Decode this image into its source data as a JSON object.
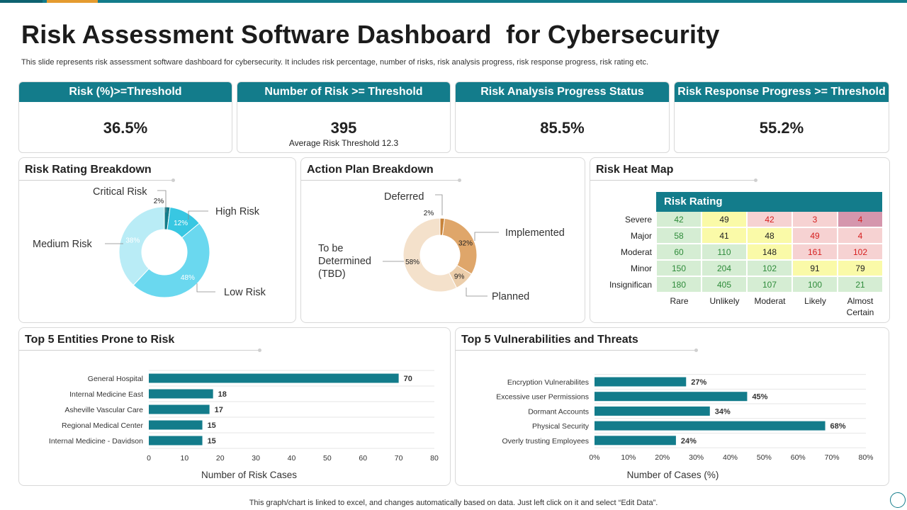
{
  "title": "Risk Assessment Software Dashboard  for Cybersecurity",
  "subtitle": "This slide represents risk assessment software dashboard for cybersecurity. It includes risk percentage, number of risks, risk analysis progress, risk response progress, risk rating etc.",
  "kpis": [
    {
      "label": "Risk (%)>=Threshold",
      "value": "36.5%"
    },
    {
      "label": "Number of Risk >= Threshold",
      "value": "395",
      "note": "Average  Risk Threshold  12.3"
    },
    {
      "label": "Risk  Analysis Progress Status",
      "value": "85.5%"
    },
    {
      "label": "Risk  Response Progress >= Threshold",
      "value": "55.2%"
    }
  ],
  "panels": {
    "rating": "Risk  Rating Breakdown",
    "action": "Action Plan Breakdown",
    "heatmap": "Risk Heat Map",
    "entities": "Top 5 Entities  Prone to Risk",
    "vulns": "Top 5 Vulnerabilities  and Threats"
  },
  "heatmap": {
    "header": "Risk Rating",
    "rows": [
      "Severe",
      "Major",
      "Moderat",
      "Minor",
      "Insignifican"
    ],
    "cols": [
      "Rare",
      "Unlikely",
      "Moderat",
      "Likely",
      "Almost Certain"
    ],
    "values": [
      [
        "42",
        "49",
        "42",
        "3",
        "4"
      ],
      [
        "58",
        "41",
        "48",
        "49",
        "4"
      ],
      [
        "60",
        "110",
        "148",
        "161",
        "102"
      ],
      [
        "150",
        "204",
        "102",
        "91",
        "79"
      ],
      [
        "180",
        "405",
        "107",
        "100",
        "21"
      ]
    ],
    "cell_colors": [
      [
        "#d5edd3",
        "#fafaa8",
        "#f6d2d2",
        "#f6d2d2",
        "#d596ad"
      ],
      [
        "#d5edd3",
        "#fafaa8",
        "#fafaa8",
        "#f6d2d2",
        "#f6d2d2"
      ],
      [
        "#d5edd3",
        "#d5edd3",
        "#fafaa8",
        "#f6d2d2",
        "#f6d2d2"
      ],
      [
        "#d5edd3",
        "#d5edd3",
        "#d5edd3",
        "#fafaa8",
        "#fafaa8"
      ],
      [
        "#d5edd3",
        "#d5edd3",
        "#d5edd3",
        "#d5edd3",
        "#d5edd3"
      ]
    ],
    "text_colors": [
      [
        "#2e8b3a",
        "#222222",
        "#d62020",
        "#d62020",
        "#d62020"
      ],
      [
        "#2e8b3a",
        "#222222",
        "#222222",
        "#d62020",
        "#d62020"
      ],
      [
        "#2e8b3a",
        "#2e8b3a",
        "#222222",
        "#d62020",
        "#d62020"
      ],
      [
        "#2e8b3a",
        "#2e8b3a",
        "#2e8b3a",
        "#222222",
        "#222222"
      ],
      [
        "#2e8b3a",
        "#2e8b3a",
        "#2e8b3a",
        "#2e8b3a",
        "#2e8b3a"
      ]
    ]
  },
  "chart_data": [
    {
      "type": "pie",
      "title": "Risk  Rating Breakdown",
      "categories": [
        "Critical Risk",
        "High Risk",
        "Low Risk",
        "Medium Risk"
      ],
      "values": [
        2,
        12,
        48,
        38
      ],
      "labels": [
        "2%",
        "12%",
        "48%",
        "38%"
      ],
      "colors": [
        "#137c8b",
        "#38c7e2",
        "#6ad8ef",
        "#b9ecf6"
      ]
    },
    {
      "type": "pie",
      "title": "Action Plan Breakdown",
      "categories": [
        "Deferred",
        "Implemented",
        "Planned",
        "To be Determined (TBD)"
      ],
      "values": [
        2,
        32,
        9,
        58
      ],
      "labels": [
        "2%",
        "32%",
        "9%",
        "58%"
      ],
      "colors": [
        "#c8833a",
        "#dfa66a",
        "#ecceab",
        "#f4e1cb"
      ]
    },
    {
      "type": "bar",
      "orientation": "horizontal",
      "title": "Top 5 Entities  Prone to Risk",
      "categories": [
        "General Hospital",
        "Internal Medicine East",
        "Asheville Vascular Care",
        "Regional Medical Center",
        "Internal Medicine - Davidson"
      ],
      "values": [
        70,
        18,
        17,
        15,
        15
      ],
      "value_labels": [
        "70",
        "18",
        "17",
        "15",
        "15"
      ],
      "xlabel": "Number  of Risk Cases",
      "xlim": [
        0,
        80
      ],
      "ticks": [
        "0",
        "10",
        "20",
        "30",
        "40",
        "50",
        "60",
        "70",
        "80"
      ],
      "color": "#137c8b"
    },
    {
      "type": "bar",
      "orientation": "horizontal",
      "title": "Top 5 Vulnerabilities  and Threats",
      "categories": [
        "Encryption Vulnerabilites",
        "Excessive user Permissions",
        "Dormant  Accounts",
        "Physical Security",
        "Overly trusting Employees"
      ],
      "values": [
        27,
        45,
        34,
        68,
        24
      ],
      "value_labels": [
        "27%",
        "45%",
        "34%",
        "68%",
        "24%"
      ],
      "xlabel": "Number of Cases (%)",
      "xlim": [
        0,
        80
      ],
      "ticks": [
        "0%",
        "10%",
        "20%",
        "30%",
        "40%",
        "50%",
        "60%",
        "70%",
        "80%"
      ],
      "color": "#137c8b"
    }
  ],
  "footer": "This graph/chart is linked to excel,  and changes automatically based on data. Just left click on it and select “Edit Data”."
}
